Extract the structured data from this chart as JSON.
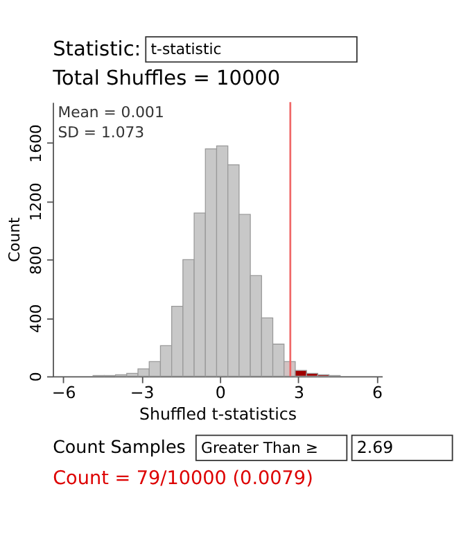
{
  "chart_data": {
    "type": "histogram",
    "xlabel": "Shuffled t-statistics",
    "ylabel": "Count",
    "bins": [
      -4.86,
      -4.43,
      -4.0,
      -3.57,
      -3.14,
      -2.71,
      -2.28,
      -1.85,
      -1.42,
      -0.99,
      -0.56,
      -0.13,
      0.3,
      0.73,
      1.16,
      1.59,
      2.02,
      2.45,
      2.88,
      3.31,
      3.74,
      4.17,
      4.6
    ],
    "values": [
      5,
      5,
      10,
      20,
      50,
      100,
      210,
      480,
      800,
      1120,
      1560,
      1580,
      1450,
      1110,
      690,
      400,
      220,
      100,
      40,
      20,
      10,
      5
    ],
    "colors": [
      "#c8c8c8",
      "#c8c8c8",
      "#c8c8c8",
      "#c8c8c8",
      "#c8c8c8",
      "#c8c8c8",
      "#c8c8c8",
      "#c8c8c8",
      "#c8c8c8",
      "#c8c8c8",
      "#c8c8c8",
      "#c8c8c8",
      "#c8c8c8",
      "#c8c8c8",
      "#c8c8c8",
      "#c8c8c8",
      "#c8c8c8",
      "#d2c2c2",
      "#a00000",
      "#a00000",
      "#a00000",
      "#a00000"
    ],
    "xlim": [
      -6.4,
      6.2
    ],
    "xticks": [
      -6,
      -3,
      0,
      3,
      6
    ],
    "ylim": [
      0,
      1880
    ],
    "yticks": [
      0,
      400,
      800,
      1200,
      1600
    ],
    "grid": false,
    "ref_lines": [
      {
        "axis": "x",
        "value": 2.69,
        "color": "#f06868"
      }
    ],
    "annotations": [
      "Statistic:",
      "t-statistic",
      "Total Shuffles = 10000",
      "Mean = 0.001",
      "SD = 1.073",
      "Count Samples",
      "Greater Than ≥",
      "2.69",
      "Count = 79/10000 (0.0079)"
    ]
  }
}
